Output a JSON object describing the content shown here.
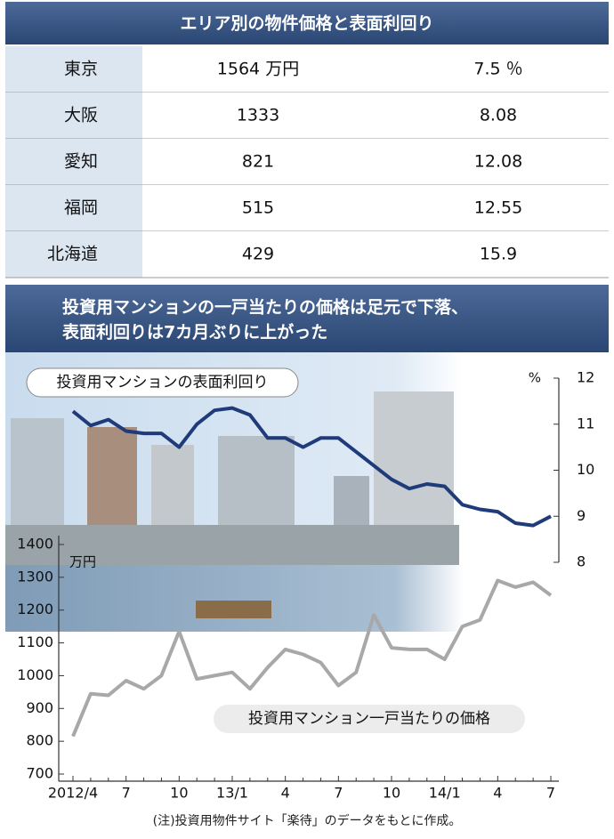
{
  "table": {
    "title": "エリア別の物件価格と表面利回り",
    "rows": [
      [
        "東京",
        "1564 万円",
        "7.5 ％"
      ],
      [
        "大阪",
        "1333",
        "8.08"
      ],
      [
        "愛知",
        "821",
        "12.08"
      ],
      [
        "福岡",
        "515",
        "12.55"
      ],
      [
        "北海道",
        "429",
        "15.9"
      ]
    ]
  },
  "chart_data": {
    "type": "line",
    "title": [
      "投資用マンションの一戸当たりの価格は足元で下落、",
      "表面利回りは7カ月ぶりに上がった"
    ],
    "categories": [
      "2012/4",
      null,
      null,
      "7",
      null,
      null,
      "10",
      null,
      null,
      "13/1",
      null,
      null,
      "4",
      null,
      null,
      "7",
      null,
      null,
      "10",
      null,
      null,
      "14/1",
      null,
      null,
      "4",
      null,
      null,
      "7"
    ],
    "y_label": "万円",
    "y2_label": "%",
    "ylim": [
      700,
      1400
    ],
    "yticks": [
      700,
      800,
      900,
      1000,
      1100,
      1200,
      1300,
      1400
    ],
    "y2lim": [
      8,
      12
    ],
    "y2ticks": [
      8,
      9,
      10,
      11,
      12
    ],
    "series": [
      {
        "name": "投資用マンションの表面利回り",
        "color": "#1f3b7a",
        "axis": "y2",
        "values": [
          11.28,
          10.97,
          11.1,
          10.85,
          10.8,
          10.8,
          10.5,
          11.0,
          11.3,
          11.35,
          11.2,
          10.7,
          10.7,
          10.5,
          10.7,
          10.7,
          10.4,
          10.1,
          9.8,
          9.6,
          9.7,
          9.65,
          9.25,
          9.15,
          9.1,
          8.85,
          8.8,
          9.0
        ]
      },
      {
        "name": "投資用マンション一戸当たりの価格",
        "color": "#a8a8a8",
        "values": [
          815,
          945,
          940,
          985,
          960,
          1000,
          1135,
          990,
          1000,
          1010,
          960,
          1025,
          1080,
          1065,
          1040,
          970,
          1010,
          1185,
          1085,
          1080,
          1080,
          1050,
          1150,
          1170,
          1290,
          1270,
          1285,
          1245
        ]
      }
    ],
    "note": "(注)投資用物件サイト「楽待」のデータをもとに作成。"
  }
}
